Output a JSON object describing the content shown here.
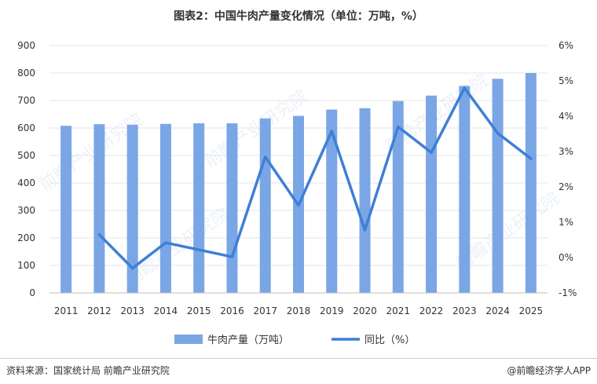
{
  "title": "图表2：中国牛肉产量变化情况（单位：万吨，%）",
  "source": "资料来源：国家统计局 前瞻产业研究院",
  "brand": "@前瞻经济学人APP",
  "watermark": "前瞻产业研究院",
  "colors": {
    "bar": "#7aa6e6",
    "line": "#3f7fd6",
    "grid": "#e5e5e5",
    "axis": "#bfbfbf"
  },
  "chart_data": {
    "type": "bar",
    "categories": [
      "2011",
      "2012",
      "2013",
      "2014",
      "2015",
      "2016",
      "2017",
      "2018",
      "2019",
      "2020",
      "2021",
      "2022",
      "2023",
      "2024",
      "2025"
    ],
    "series": [
      {
        "name": "牛肉产量（万吨）",
        "type": "bar",
        "axis": "left",
        "values": [
          608,
          614,
          612,
          615,
          617,
          617,
          635,
          644,
          667,
          672,
          698,
          718,
          753,
          779,
          800
        ]
      },
      {
        "name": "同比（%）",
        "type": "line",
        "axis": "right",
        "values": [
          null,
          0.65,
          -0.3,
          0.42,
          0.22,
          0.02,
          2.85,
          1.48,
          3.58,
          0.78,
          3.7,
          2.97,
          4.8,
          3.52,
          2.8
        ]
      }
    ],
    "y_left": {
      "min": 0,
      "max": 900,
      "step": 100,
      "ticks": [
        "0",
        "100",
        "200",
        "300",
        "400",
        "500",
        "600",
        "700",
        "800",
        "900"
      ]
    },
    "y_right": {
      "min": -1,
      "max": 6,
      "step": 1,
      "ticks": [
        "-1%",
        "0%",
        "1%",
        "2%",
        "3%",
        "4%",
        "5%",
        "6%"
      ]
    },
    "grid": true,
    "legend": "bottom"
  }
}
